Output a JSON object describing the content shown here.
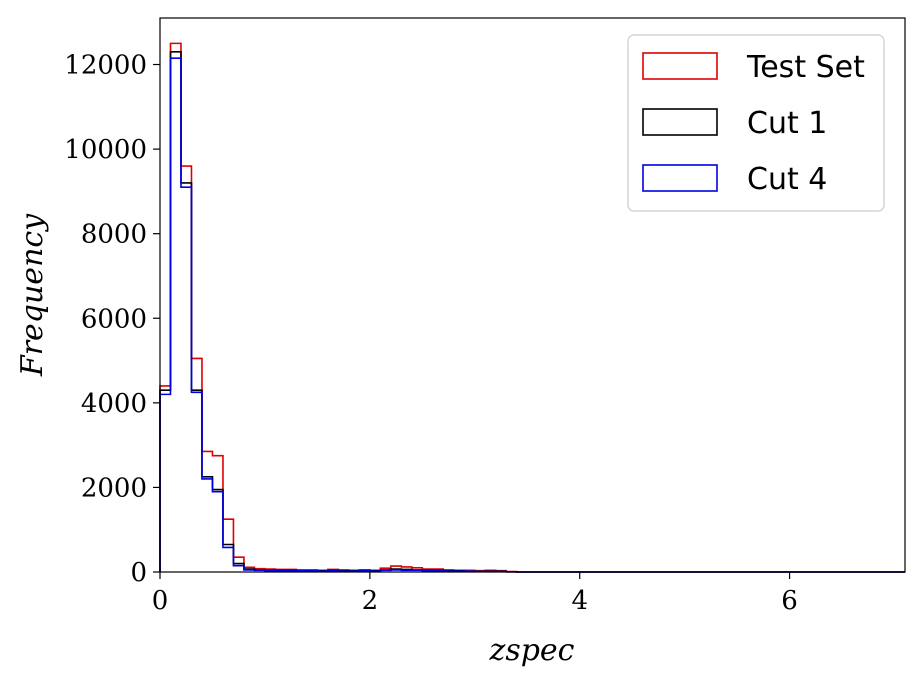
{
  "chart_data": {
    "type": "histogram-step",
    "xlabel": "zspec",
    "ylabel": "Frequency",
    "xlim": [
      0,
      7.1
    ],
    "ylim": [
      0,
      13100
    ],
    "xticks": [
      0,
      2,
      4,
      6
    ],
    "yticks": [
      0,
      2000,
      4000,
      6000,
      8000,
      10000,
      12000
    ],
    "legend_position": "top-right",
    "bin_width": 0.1,
    "x_start": 0.0,
    "x_end": 7.1,
    "series": [
      {
        "name": "Test Set",
        "color": "#e00000",
        "values": [
          4400,
          12500,
          9600,
          5050,
          2850,
          2750,
          1250,
          350,
          110,
          80,
          70,
          60,
          60,
          50,
          50,
          40,
          60,
          50,
          40,
          50,
          40,
          90,
          140,
          120,
          100,
          70,
          70,
          50,
          40,
          40,
          30,
          40,
          30,
          10
        ]
      },
      {
        "name": "Cut 1",
        "color": "#000000",
        "values": [
          4300,
          12300,
          9200,
          4300,
          2250,
          1950,
          650,
          200,
          70,
          50,
          40,
          40,
          40,
          30,
          30,
          30,
          40,
          30,
          30,
          40,
          30,
          50,
          70,
          60,
          50,
          40,
          40,
          30,
          30,
          20,
          20,
          20,
          20,
          5
        ]
      },
      {
        "name": "Cut 4",
        "color": "#0000e6",
        "values": [
          4200,
          12150,
          9100,
          4250,
          2200,
          1900,
          580,
          150,
          50,
          40,
          30,
          30,
          30,
          30,
          30,
          20,
          30,
          20,
          20,
          30,
          20,
          40,
          50,
          40,
          40,
          30,
          30,
          20,
          20,
          20,
          10,
          10,
          10,
          5
        ]
      }
    ]
  }
}
